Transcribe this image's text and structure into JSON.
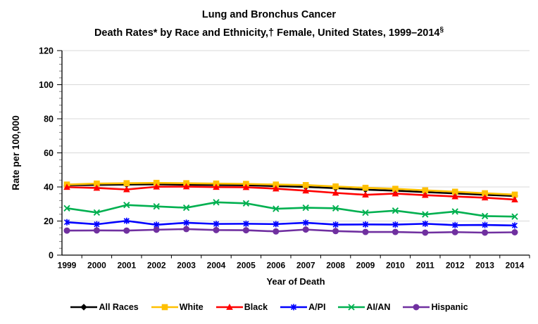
{
  "title": {
    "line1": "Lung and Bronchus Cancer",
    "line2": "Death Rates* by Race and Ethnicity,† Female, United States, 1999–2014",
    "line2_sup": "§"
  },
  "colors": {
    "background": "#FFFFFF",
    "gridline": "#D9D9D9",
    "axis": "#000000",
    "minor_tick": "#808080",
    "text": "#000000"
  },
  "chart_data": {
    "type": "line",
    "title": "Lung and Bronchus Cancer Death Rates* by Race and Ethnicity,† Female, United States, 1999–2014§",
    "xlabel": "Year of Death",
    "ylabel": "Rate per 100,000",
    "ylim": [
      0,
      120
    ],
    "ytick_step": 20,
    "y_minor_step": 4,
    "grid": "horizontal-major-only",
    "legend_position": "bottom",
    "categories": [
      "1999",
      "2000",
      "2001",
      "2002",
      "2003",
      "2004",
      "2005",
      "2006",
      "2007",
      "2008",
      "2009",
      "2010",
      "2011",
      "2012",
      "2013",
      "2014"
    ],
    "series": [
      {
        "name": "All Races",
        "color": "#000000",
        "marker": "diamond",
        "values": [
          41.0,
          41.2,
          41.4,
          41.5,
          41.3,
          41.1,
          41.0,
          40.5,
          40.0,
          39.3,
          38.4,
          37.8,
          37.0,
          36.2,
          35.4,
          34.7
        ]
      },
      {
        "name": "White",
        "color": "#FFC000",
        "marker": "square",
        "values": [
          41.4,
          42.0,
          42.2,
          42.4,
          42.2,
          42.0,
          41.8,
          41.4,
          41.1,
          40.3,
          39.5,
          38.9,
          38.0,
          37.2,
          36.3,
          35.5
        ]
      },
      {
        "name": "Black",
        "color": "#FF0000",
        "marker": "triangle",
        "values": [
          39.9,
          39.4,
          38.5,
          40.1,
          40.2,
          39.9,
          39.8,
          39.0,
          37.8,
          36.5,
          35.4,
          36.1,
          35.2,
          34.4,
          33.7,
          32.6
        ]
      },
      {
        "name": "A/PI",
        "color": "#0000FF",
        "marker": "asterisk",
        "values": [
          19.3,
          18.1,
          20.1,
          17.8,
          19.0,
          18.3,
          18.4,
          18.2,
          19.0,
          17.9,
          18.0,
          17.9,
          18.4,
          17.6,
          17.7,
          17.4
        ]
      },
      {
        "name": "AI/AN",
        "color": "#00B050",
        "marker": "x",
        "values": [
          27.5,
          25.0,
          29.4,
          28.6,
          27.8,
          31.0,
          30.4,
          27.2,
          27.8,
          27.5,
          24.9,
          26.1,
          23.9,
          25.6,
          22.9,
          22.6
        ]
      },
      {
        "name": "Hispanic",
        "color": "#7030A0",
        "marker": "circle",
        "values": [
          14.4,
          14.5,
          14.4,
          14.9,
          15.3,
          14.7,
          14.6,
          13.9,
          15.0,
          14.1,
          13.6,
          13.6,
          13.2,
          13.5,
          13.2,
          13.4
        ]
      }
    ]
  }
}
